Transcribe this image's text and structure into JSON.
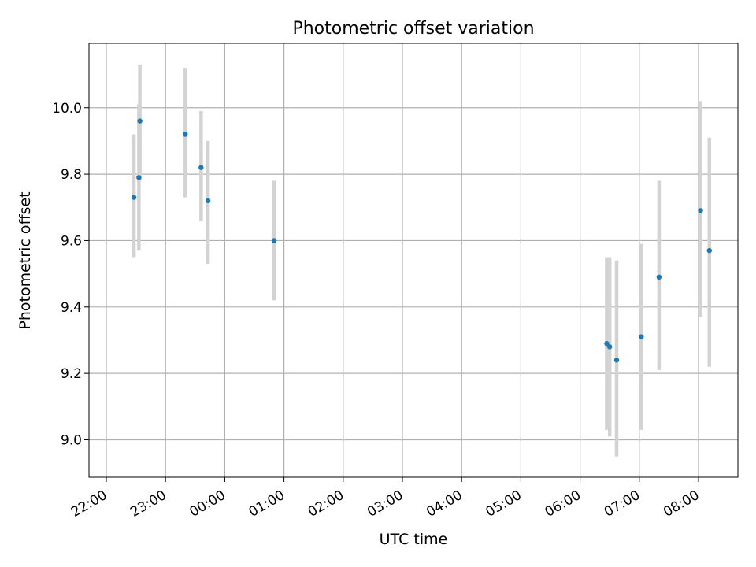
{
  "chart_data": {
    "type": "scatter",
    "title": "Photometric offset variation",
    "xlabel": "UTC time",
    "ylabel": "Photometric offset",
    "x_ticks": [
      "22:00",
      "23:00",
      "00:00",
      "01:00",
      "02:00",
      "03:00",
      "04:00",
      "05:00",
      "06:00",
      "07:00",
      "08:00"
    ],
    "y_ticks": [
      "9.0",
      "9.2",
      "9.4",
      "9.6",
      "9.8",
      "10.0"
    ],
    "ylim": [
      8.89,
      10.19
    ],
    "grid": true,
    "points": [
      {
        "x": "22:28",
        "y": 9.73,
        "err_low": 9.55,
        "err_high": 9.92
      },
      {
        "x": "22:33",
        "y": 9.79,
        "err_low": 9.57,
        "err_high": 10.01
      },
      {
        "x": "22:34",
        "y": 9.96,
        "err_low": 9.78,
        "err_high": 10.13
      },
      {
        "x": "23:20",
        "y": 9.92,
        "err_low": 9.73,
        "err_high": 10.12
      },
      {
        "x": "23:36",
        "y": 9.82,
        "err_low": 9.66,
        "err_high": 9.99
      },
      {
        "x": "23:43",
        "y": 9.72,
        "err_low": 9.53,
        "err_high": 9.9
      },
      {
        "x": "00:50",
        "y": 9.6,
        "err_low": 9.42,
        "err_high": 9.78
      },
      {
        "x": "06:27",
        "y": 9.29,
        "err_low": 9.03,
        "err_high": 9.55
      },
      {
        "x": "06:30",
        "y": 9.28,
        "err_low": 9.01,
        "err_high": 9.55
      },
      {
        "x": "06:37",
        "y": 9.24,
        "err_low": 8.95,
        "err_high": 9.54
      },
      {
        "x": "07:02",
        "y": 9.31,
        "err_low": 9.03,
        "err_high": 9.59
      },
      {
        "x": "07:20",
        "y": 9.49,
        "err_low": 9.21,
        "err_high": 9.78
      },
      {
        "x": "08:02",
        "y": 9.69,
        "err_low": 9.37,
        "err_high": 10.02
      },
      {
        "x": "08:11",
        "y": 9.57,
        "err_low": 9.22,
        "err_high": 9.91
      }
    ],
    "colors": {
      "marker": "#1f77b4",
      "errorbar": "#d3d3d3",
      "grid": "#b0b0b0",
      "axes": "#000000"
    }
  }
}
